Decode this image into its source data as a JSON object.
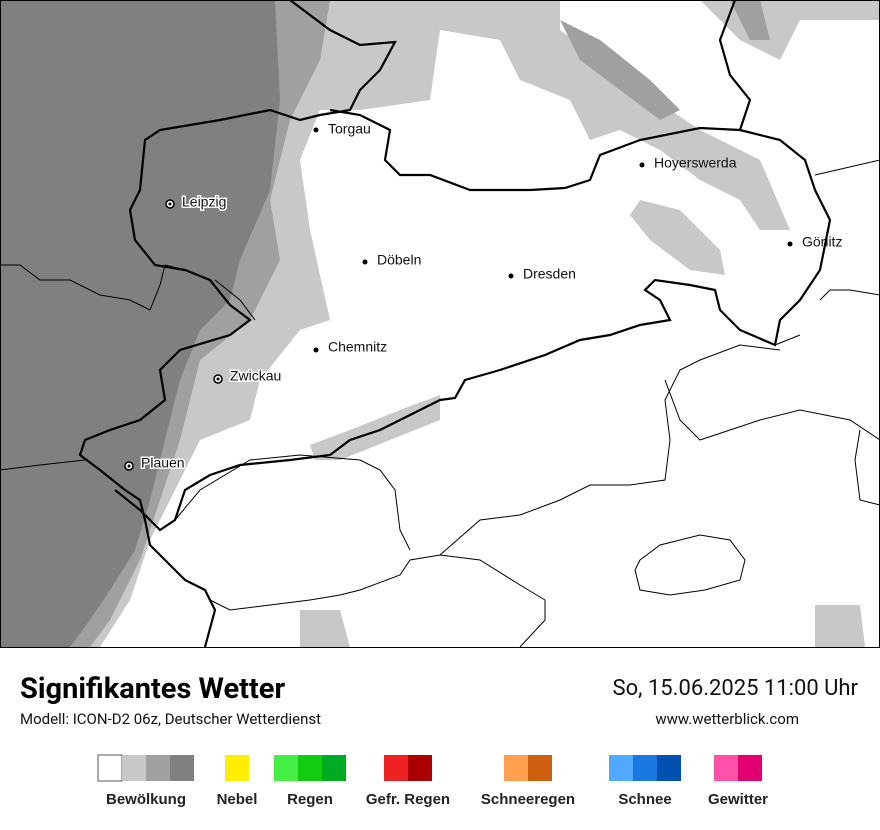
{
  "header": {
    "title": "Signifikantes Wetter",
    "subtitle": "Modell: ICON-D2 06z, Deutscher Wetterdienst",
    "datetime": "So, 15.06.2025 11:00 Uhr",
    "website": "www.wetterblick.com"
  },
  "cities": [
    "Torgau",
    "Leipzig",
    "Döbeln",
    "Dresden",
    "Hoyerswerda",
    "Görlitz",
    "Chemnitz",
    "Zwickau",
    "Plauen"
  ],
  "legend": [
    {
      "label": "Bewölkung",
      "colors": [
        "#ffffff",
        "#c8c8c8",
        "#a0a0a0",
        "#808080"
      ]
    },
    {
      "label": "Nebel",
      "colors": [
        "#ffee00"
      ]
    },
    {
      "label": "Regen",
      "colors": [
        "#44ee44",
        "#11cc11",
        "#00aa22"
      ]
    },
    {
      "label": "Gefr. Regen",
      "colors": [
        "#ee2222",
        "#aa0000"
      ]
    },
    {
      "label": "Schneeregen",
      "colors": [
        "#ffa050",
        "#cc6010"
      ]
    },
    {
      "label": "Schnee",
      "colors": [
        "#50a8ff",
        "#1a78e0",
        "#0050b0"
      ]
    },
    {
      "label": "Gewitter",
      "colors": [
        "#ff50aa",
        "#e00070"
      ]
    }
  ]
}
